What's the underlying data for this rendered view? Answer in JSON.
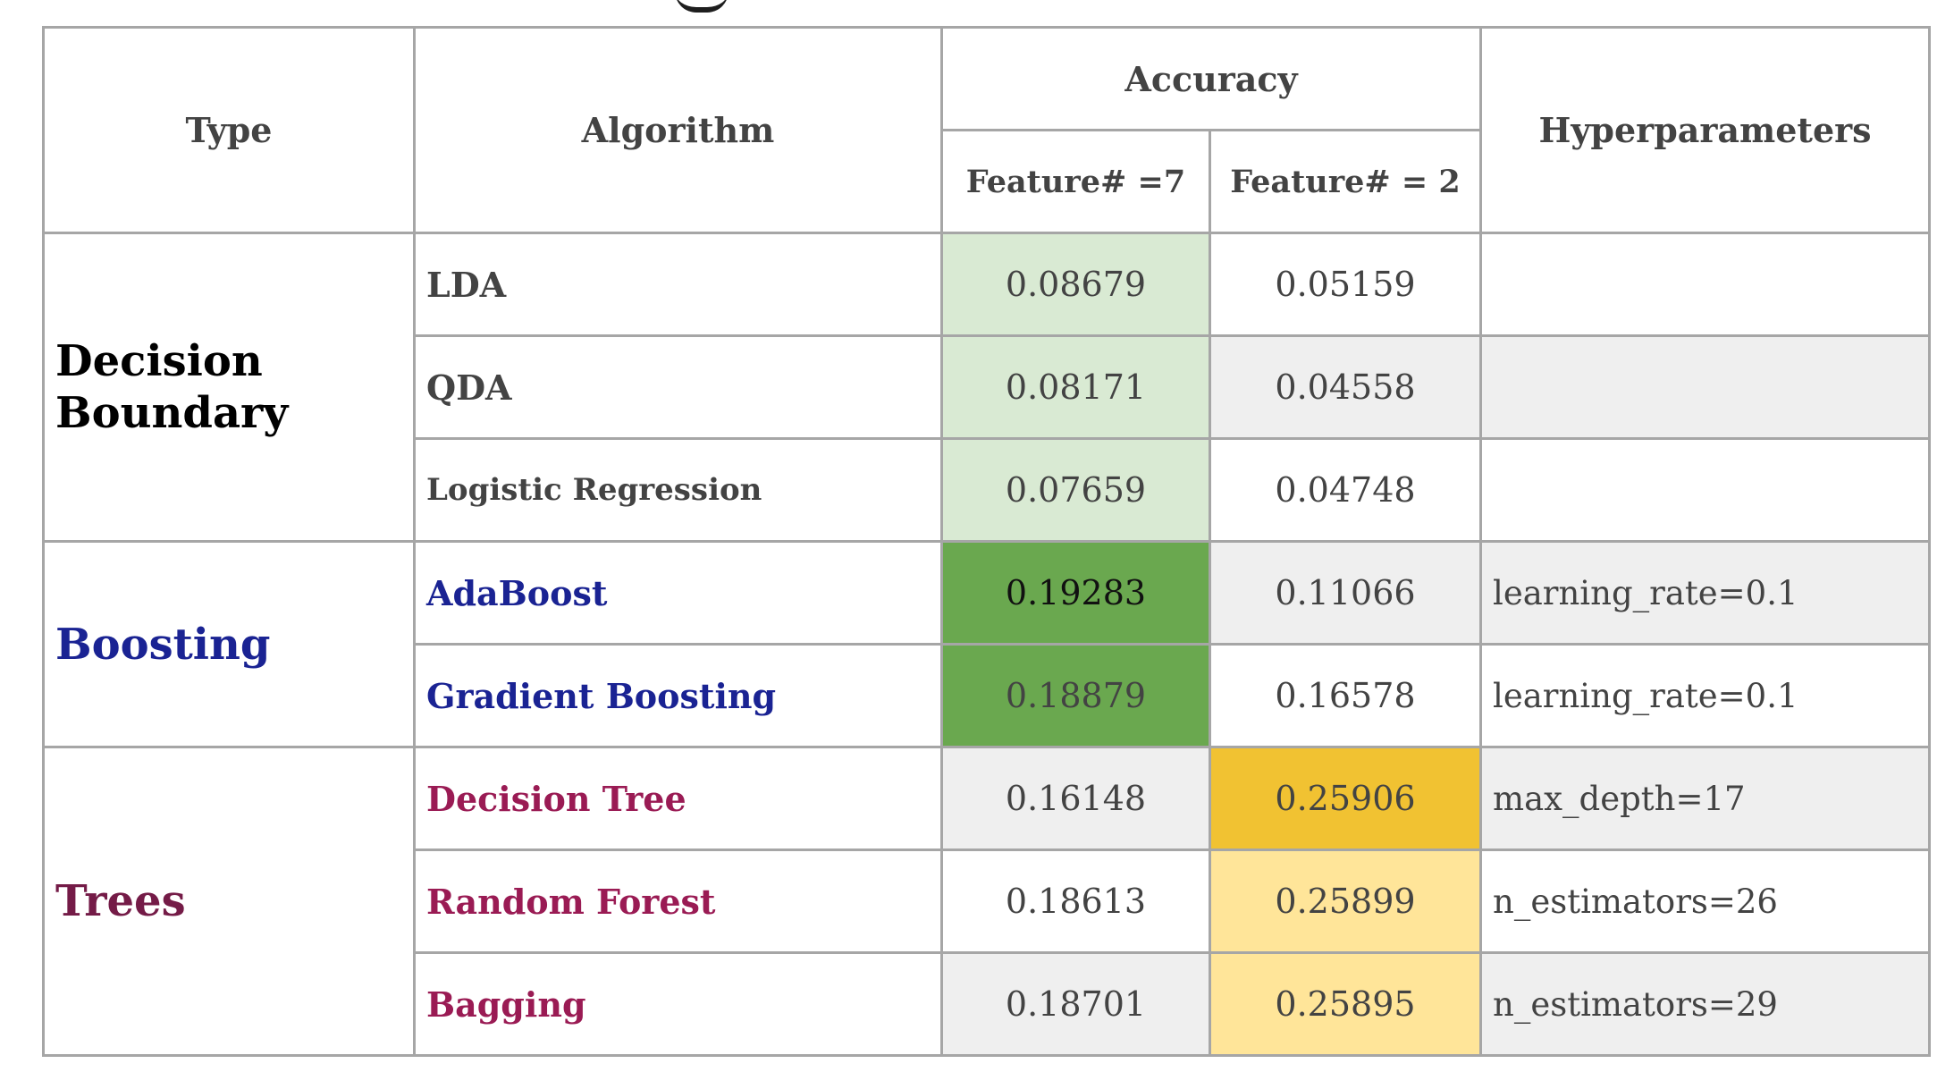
{
  "table": {
    "headers": {
      "type": "Type",
      "algorithm": "Algorithm",
      "accuracy": "Accuracy",
      "feature7": "Feature# =7",
      "feature2": "Feature# = 2",
      "hyperparameters": "Hyperparameters"
    },
    "groups": [
      {
        "type": "Decision Boundary",
        "color": "#000000",
        "rows": [
          {
            "algorithm": "LDA",
            "f7": "0.08679",
            "f2": "0.05159",
            "hyper": ""
          },
          {
            "algorithm": "QDA",
            "f7": "0.08171",
            "f2": "0.04558",
            "hyper": ""
          },
          {
            "algorithm": "Logistic Regression",
            "f7": "0.07659",
            "f2": "0.04748",
            "hyper": ""
          }
        ]
      },
      {
        "type": "Boosting",
        "color": "#1a2393",
        "rows": [
          {
            "algorithm": "AdaBoost",
            "f7": "0.19283",
            "f2": "0.11066",
            "hyper": "learning_rate=0.1"
          },
          {
            "algorithm": "Gradient Boosting",
            "f7": "0.18879",
            "f2": "0.16578",
            "hyper": "learning_rate=0.1"
          }
        ]
      },
      {
        "type": "Trees",
        "color": "#741b47",
        "rows": [
          {
            "algorithm": "Decision Tree",
            "f7": "0.16148",
            "f2": "0.25906",
            "hyper": "max_depth=17"
          },
          {
            "algorithm": "Random Forest",
            "f7": "0.18613",
            "f2": "0.25899",
            "hyper": "n_estimators=26"
          },
          {
            "algorithm": "Bagging",
            "f7": "0.18701",
            "f2": "0.25895",
            "hyper": "n_estimators=29"
          }
        ]
      }
    ],
    "highlight_colors": {
      "light_green": "#d9ead3",
      "green": "#6aa84f",
      "grey": "#efefef",
      "gold": "#f1c232",
      "light_gold": "#ffe599"
    }
  }
}
